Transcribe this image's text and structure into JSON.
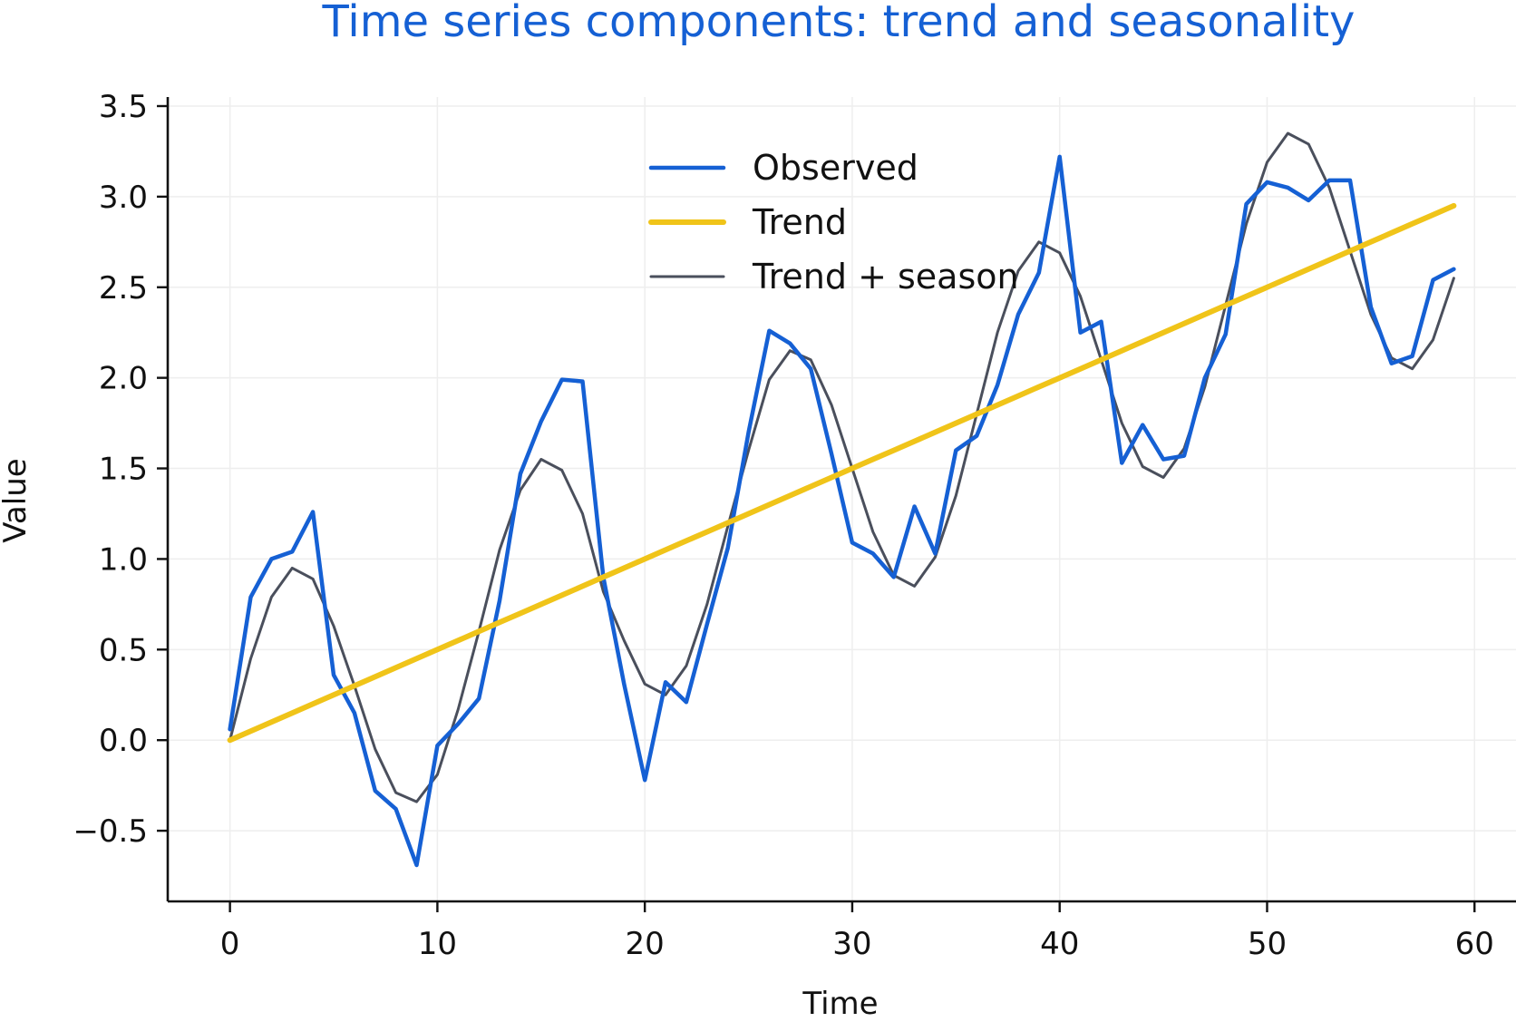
{
  "chart_data": {
    "type": "line",
    "title": "Time series components: trend and seasonality",
    "xlabel": "Time",
    "ylabel": "Value",
    "xlim": [
      -3,
      62
    ],
    "ylim": [
      -0.89,
      3.55
    ],
    "xticks": [
      0,
      10,
      20,
      30,
      40,
      50,
      60
    ],
    "yticks": [
      -0.5,
      0.0,
      0.5,
      1.0,
      1.5,
      2.0,
      2.5,
      3.0,
      3.5
    ],
    "xtick_labels": [
      "0",
      "10",
      "20",
      "30",
      "40",
      "50",
      "60"
    ],
    "ytick_labels": [
      "−0.5",
      "0.0",
      "0.5",
      "1.0",
      "1.5",
      "2.0",
      "2.5",
      "3.0",
      "3.5"
    ],
    "grid": true,
    "legend_position": "upper center",
    "colors": {
      "title": "#1560d4",
      "observed": "#1560d4",
      "trend": "#f0c419",
      "trend_season": "#4a4f5c",
      "axis": "#111111",
      "grid": "#eeeeee"
    },
    "x": [
      0,
      1,
      2,
      3,
      4,
      5,
      6,
      7,
      8,
      9,
      10,
      11,
      12,
      13,
      14,
      15,
      16,
      17,
      18,
      19,
      20,
      21,
      22,
      23,
      24,
      25,
      26,
      27,
      28,
      29,
      30,
      31,
      32,
      33,
      34,
      35,
      36,
      37,
      38,
      39,
      40,
      41,
      42,
      43,
      44,
      45,
      46,
      47,
      48,
      49,
      50,
      51,
      52,
      53,
      54,
      55,
      56,
      57,
      58,
      59
    ],
    "series": [
      {
        "name": "Observed",
        "key": "observed",
        "values": [
          0.06,
          0.79,
          1.0,
          1.04,
          1.26,
          0.36,
          0.15,
          -0.28,
          -0.38,
          -0.69,
          -0.03,
          0.09,
          0.23,
          0.77,
          1.47,
          1.76,
          1.99,
          1.98,
          0.9,
          0.31,
          -0.22,
          0.32,
          0.21,
          0.64,
          1.06,
          1.7,
          2.26,
          2.19,
          2.05,
          1.58,
          1.09,
          1.03,
          0.9,
          1.29,
          1.03,
          1.6,
          1.68,
          1.96,
          2.35,
          2.58,
          3.22,
          2.25,
          2.31,
          1.53,
          1.74,
          1.55,
          1.57,
          2.0,
          2.24,
          2.96,
          3.08,
          3.05,
          2.98,
          3.09,
          3.09,
          2.39,
          2.08,
          2.12,
          2.54,
          2.6
        ]
      },
      {
        "name": "Trend",
        "key": "trend",
        "values": [
          0.0,
          0.05,
          0.1,
          0.15,
          0.2,
          0.25,
          0.3,
          0.35,
          0.4,
          0.45,
          0.5,
          0.55,
          0.6,
          0.65,
          0.7,
          0.75,
          0.8,
          0.85,
          0.9,
          0.95,
          1.0,
          1.05,
          1.1,
          1.15,
          1.2,
          1.25,
          1.3,
          1.35,
          1.4,
          1.45,
          1.5,
          1.55,
          1.6,
          1.65,
          1.7,
          1.75,
          1.8,
          1.85,
          1.9,
          1.95,
          2.0,
          2.05,
          2.1,
          2.15,
          2.2,
          2.25,
          2.3,
          2.35,
          2.4,
          2.45,
          2.5,
          2.55,
          2.6,
          2.65,
          2.7,
          2.75,
          2.8,
          2.85,
          2.9,
          2.95
        ]
      },
      {
        "name": "Trend + season",
        "key": "trend_season",
        "values": [
          0.0,
          0.45,
          0.79,
          0.95,
          0.89,
          0.63,
          0.3,
          -0.05,
          -0.29,
          -0.34,
          -0.19,
          0.17,
          0.6,
          1.05,
          1.38,
          1.55,
          1.49,
          1.25,
          0.82,
          0.55,
          0.31,
          0.25,
          0.41,
          0.75,
          1.18,
          1.6,
          1.99,
          2.15,
          2.1,
          1.85,
          1.5,
          1.15,
          0.91,
          0.85,
          1.01,
          1.35,
          1.8,
          2.25,
          2.59,
          2.75,
          2.69,
          2.45,
          2.1,
          1.75,
          1.51,
          1.45,
          1.61,
          1.95,
          2.4,
          2.85,
          3.19,
          3.35,
          3.29,
          3.05,
          2.7,
          2.35,
          2.11,
          2.05,
          2.21,
          2.55
        ]
      }
    ]
  }
}
